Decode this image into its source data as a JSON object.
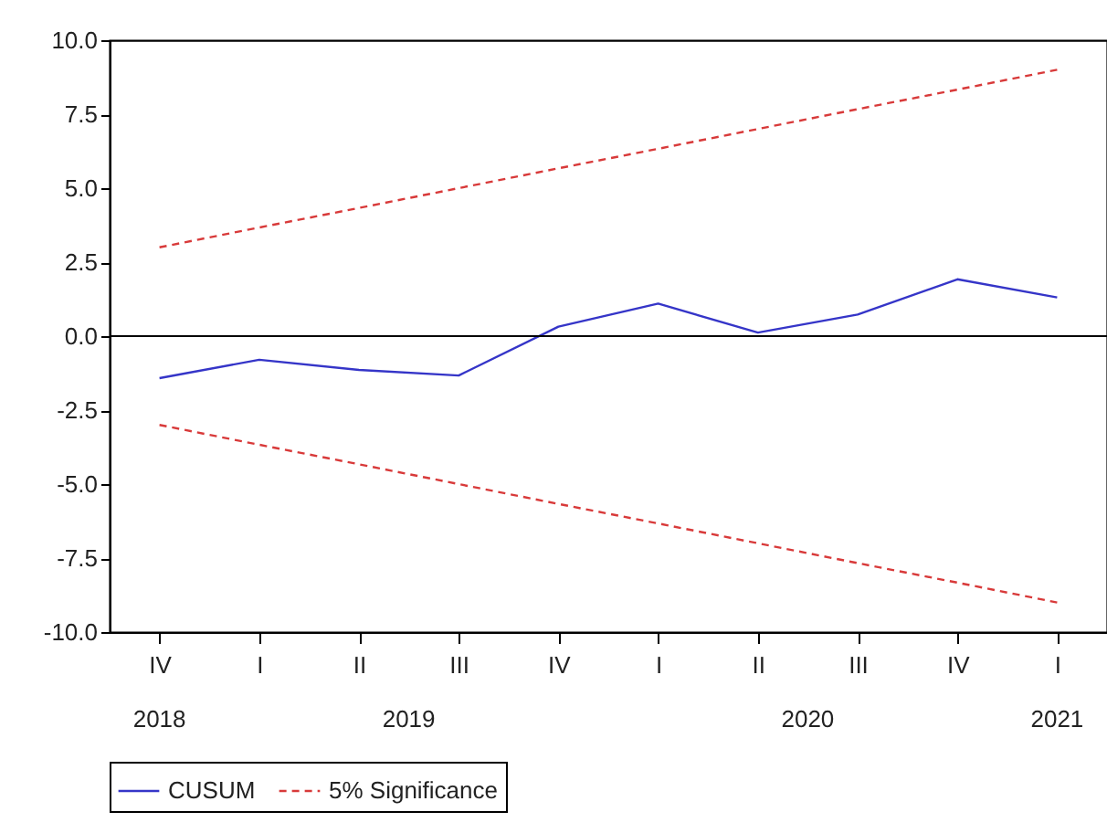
{
  "chart_data": {
    "type": "line",
    "categories": [
      "IV",
      "I",
      "II",
      "III",
      "IV",
      "I",
      "II",
      "III",
      "IV",
      "I"
    ],
    "series": [
      {
        "name": "CUSUM",
        "color": "#3535c8",
        "line_style": "solid",
        "values": [
          -1.42,
          -0.8,
          -1.14,
          -1.33,
          0.32,
          1.1,
          0.12,
          0.73,
          1.92,
          1.31
        ]
      },
      {
        "name": "5% Significance",
        "color": "#d83a3a",
        "line_style": "dashed",
        "values": [
          3.0,
          3.67,
          4.33,
          5.0,
          5.67,
          6.33,
          7.0,
          7.67,
          8.33,
          9.0
        ]
      },
      {
        "color": "#d83a3a",
        "line_style": "dashed",
        "values": [
          -3.0,
          -3.67,
          -4.33,
          -5.0,
          -5.67,
          -6.33,
          -7.0,
          -7.67,
          -8.33,
          -9.0
        ]
      }
    ],
    "ylim": [
      -10,
      10
    ],
    "yticks": [
      {
        "value": -10,
        "label": "-10.0"
      },
      {
        "value": -7.5,
        "label": "-7.5"
      },
      {
        "value": -5,
        "label": "-5.0"
      },
      {
        "value": -2.5,
        "label": "-2.5"
      },
      {
        "value": 0,
        "label": "0.0"
      },
      {
        "value": 2.5,
        "label": "2.5"
      },
      {
        "value": 5,
        "label": "5.0"
      },
      {
        "value": 7.5,
        "label": "7.5"
      },
      {
        "value": 10,
        "label": "10.0"
      }
    ],
    "legend": "bottom",
    "ref_lines": [
      {
        "axis": "y",
        "value": 0,
        "color": "#000000",
        "line_style": "solid"
      }
    ],
    "annotations": [
      "2018",
      "2019",
      "2020",
      "2021"
    ]
  }
}
